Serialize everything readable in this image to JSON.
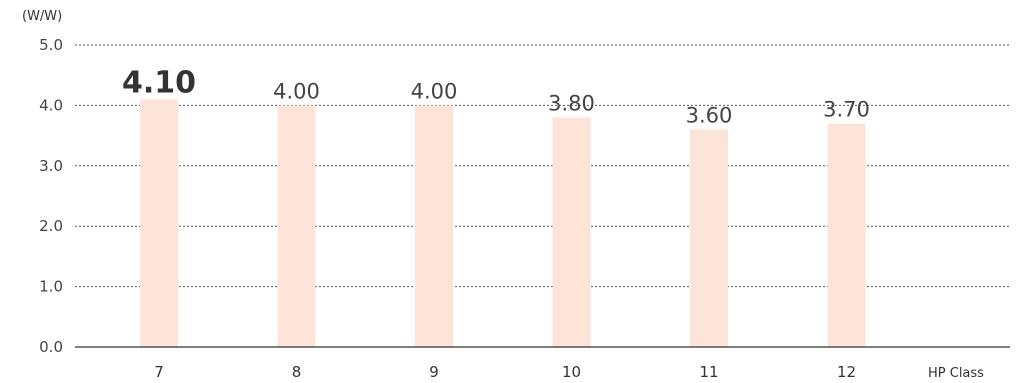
{
  "chart_data": {
    "type": "bar",
    "title": "",
    "ylabel": "(W/W)",
    "xlabel": "HP Class",
    "categories": [
      "7",
      "8",
      "9",
      "10",
      "11",
      "12"
    ],
    "values": [
      4.1,
      4.0,
      4.0,
      3.8,
      3.6,
      3.7
    ],
    "value_labels": [
      "4.10",
      "4.00",
      "4.00",
      "3.80",
      "3.60",
      "3.70"
    ],
    "highlight_index": 0,
    "ylim": [
      0,
      5.0
    ],
    "yticks": [
      "0.0",
      "1.0",
      "2.0",
      "3.0",
      "4.0",
      "5.0"
    ],
    "grid": true,
    "grid_style": "dotted",
    "bar_color": "#fde4d8"
  }
}
